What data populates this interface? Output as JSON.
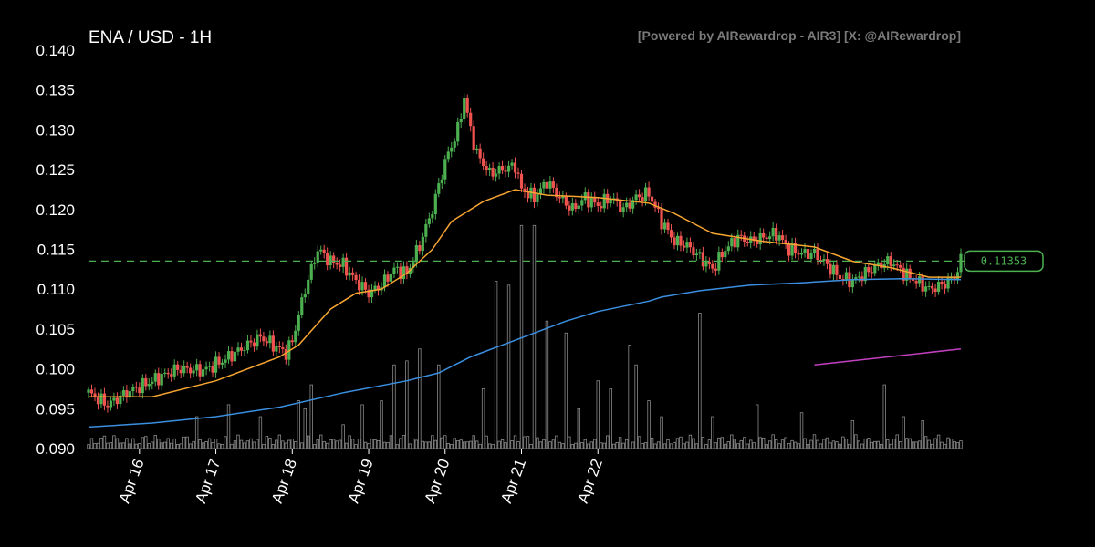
{
  "chart_data": {
    "type": "candlestick",
    "title": "ENA / USD - 1H",
    "credit": "[Powered by AIRewardrop - AIR3] [X: @AIRewardrop]",
    "ylim": [
      0.09,
      0.14
    ],
    "y_ticks": [
      "0.090",
      "0.095",
      "0.100",
      "0.105",
      "0.110",
      "0.115",
      "0.120",
      "0.125",
      "0.130",
      "0.135",
      "0.140"
    ],
    "x_ticks": [
      "Apr 16",
      "Apr 17",
      "Apr 18",
      "Apr 19",
      "Apr 20",
      "Apr 21",
      "Apr 22"
    ],
    "x_range": [
      "Apr 15 08:00",
      "Apr 22 02:00"
    ],
    "current_price": 0.11353,
    "current_price_label": "0.11353",
    "colors": {
      "up": "#4caf50",
      "down": "#ef5350",
      "ma_short": "#f7a531",
      "ma_long": "#3b8fe0",
      "ma_extra": "#c040c0",
      "volume": "#8a8a8a",
      "price_line": "#4caf50"
    },
    "price_path": [
      [
        0,
        0.097
      ],
      [
        6,
        0.0955
      ],
      [
        12,
        0.097
      ],
      [
        20,
        0.0985
      ],
      [
        28,
        0.1
      ],
      [
        36,
        0.0998
      ],
      [
        42,
        0.101
      ],
      [
        48,
        0.1025
      ],
      [
        54,
        0.104
      ],
      [
        58,
        0.103
      ],
      [
        62,
        0.102
      ],
      [
        64,
        0.1035
      ],
      [
        68,
        0.11
      ],
      [
        72,
        0.115
      ],
      [
        76,
        0.1135
      ],
      [
        80,
        0.113
      ],
      [
        84,
        0.111
      ],
      [
        88,
        0.1095
      ],
      [
        92,
        0.1105
      ],
      [
        96,
        0.1125
      ],
      [
        100,
        0.112
      ],
      [
        104,
        0.1155
      ],
      [
        108,
        0.12
      ],
      [
        112,
        0.126
      ],
      [
        116,
        0.13
      ],
      [
        118,
        0.134
      ],
      [
        120,
        0.13
      ],
      [
        122,
        0.127
      ],
      [
        126,
        0.1245
      ],
      [
        130,
        0.125
      ],
      [
        134,
        0.1255
      ],
      [
        136,
        0.1225
      ],
      [
        140,
        0.1215
      ],
      [
        144,
        0.1235
      ],
      [
        148,
        0.1215
      ],
      [
        152,
        0.12
      ],
      [
        156,
        0.1215
      ],
      [
        160,
        0.1205
      ],
      [
        164,
        0.1215
      ],
      [
        168,
        0.12
      ],
      [
        172,
        0.1215
      ],
      [
        176,
        0.122
      ],
      [
        180,
        0.1185
      ],
      [
        184,
        0.116
      ],
      [
        188,
        0.1155
      ],
      [
        192,
        0.114
      ],
      [
        196,
        0.1125
      ],
      [
        200,
        0.115
      ],
      [
        204,
        0.1165
      ],
      [
        208,
        0.116
      ],
      [
        212,
        0.1165
      ],
      [
        216,
        0.117
      ],
      [
        220,
        0.115
      ],
      [
        224,
        0.1145
      ],
      [
        228,
        0.1145
      ],
      [
        232,
        0.113
      ],
      [
        236,
        0.1115
      ],
      [
        240,
        0.111
      ],
      [
        244,
        0.112
      ],
      [
        248,
        0.113
      ],
      [
        252,
        0.1135
      ],
      [
        256,
        0.112
      ],
      [
        260,
        0.111
      ],
      [
        264,
        0.11
      ],
      [
        268,
        0.1105
      ],
      [
        272,
        0.1115
      ],
      [
        274,
        0.1135
      ]
    ],
    "ma_short_path": [
      [
        0,
        0.0965
      ],
      [
        20,
        0.0965
      ],
      [
        40,
        0.0985
      ],
      [
        60,
        0.1015
      ],
      [
        66,
        0.103
      ],
      [
        76,
        0.1075
      ],
      [
        84,
        0.1095
      ],
      [
        92,
        0.11
      ],
      [
        100,
        0.112
      ],
      [
        108,
        0.115
      ],
      [
        114,
        0.1185
      ],
      [
        124,
        0.121
      ],
      [
        134,
        0.1225
      ],
      [
        144,
        0.1218
      ],
      [
        160,
        0.1215
      ],
      [
        176,
        0.1208
      ],
      [
        184,
        0.1195
      ],
      [
        196,
        0.117
      ],
      [
        212,
        0.116
      ],
      [
        228,
        0.1153
      ],
      [
        240,
        0.1135
      ],
      [
        252,
        0.1127
      ],
      [
        264,
        0.1115
      ],
      [
        274,
        0.1115
      ]
    ],
    "ma_long_path": [
      [
        0,
        0.0927
      ],
      [
        20,
        0.0932
      ],
      [
        40,
        0.094
      ],
      [
        60,
        0.0952
      ],
      [
        80,
        0.097
      ],
      [
        100,
        0.0985
      ],
      [
        110,
        0.0995
      ],
      [
        120,
        0.1015
      ],
      [
        130,
        0.103
      ],
      [
        140,
        0.1045
      ],
      [
        150,
        0.106
      ],
      [
        160,
        0.1072
      ],
      [
        176,
        0.1085
      ],
      [
        180,
        0.109
      ],
      [
        192,
        0.1098
      ],
      [
        208,
        0.1105
      ],
      [
        224,
        0.1108
      ],
      [
        240,
        0.1112
      ],
      [
        256,
        0.1113
      ],
      [
        274,
        0.1112
      ]
    ],
    "ma_extra_path": [
      [
        228,
        0.1005
      ],
      [
        274,
        0.1025
      ]
    ],
    "volume_max": 1.0,
    "volume_spikes": [
      [
        34,
        0.08
      ],
      [
        44,
        0.11
      ],
      [
        54,
        0.08
      ],
      [
        66,
        0.12
      ],
      [
        68,
        0.1
      ],
      [
        70,
        0.16
      ],
      [
        80,
        0.06
      ],
      [
        86,
        0.11
      ],
      [
        92,
        0.12
      ],
      [
        96,
        0.21
      ],
      [
        100,
        0.22
      ],
      [
        104,
        0.25
      ],
      [
        110,
        0.21
      ],
      [
        124,
        0.15
      ],
      [
        128,
        0.42
      ],
      [
        132,
        0.41
      ],
      [
        136,
        0.56
      ],
      [
        140,
        0.56
      ],
      [
        144,
        0.32
      ],
      [
        150,
        0.29
      ],
      [
        154,
        0.1
      ],
      [
        160,
        0.17
      ],
      [
        164,
        0.15
      ],
      [
        170,
        0.26
      ],
      [
        172,
        0.21
      ],
      [
        176,
        0.12
      ],
      [
        180,
        0.08
      ],
      [
        192,
        0.34
      ],
      [
        196,
        0.08
      ],
      [
        210,
        0.11
      ],
      [
        224,
        0.09
      ],
      [
        240,
        0.07
      ],
      [
        250,
        0.16
      ],
      [
        256,
        0.08
      ],
      [
        262,
        0.07
      ]
    ],
    "hours_total": 274
  }
}
